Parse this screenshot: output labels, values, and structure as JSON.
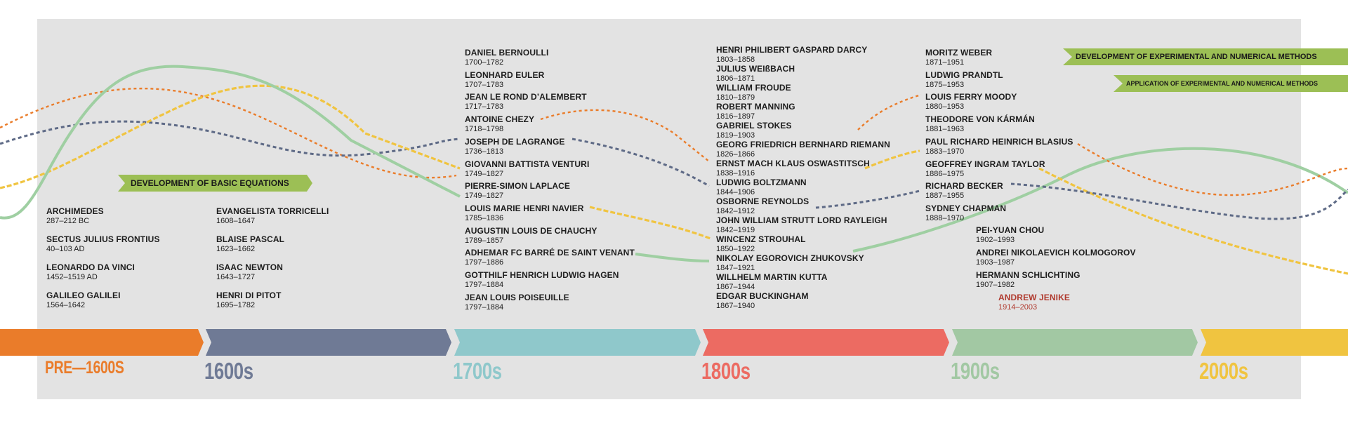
{
  "colors": {
    "orange": "#ea7c2a",
    "slate": "#6f7a95",
    "teal": "#8fc8cb",
    "red": "#ec6b62",
    "green": "#a2c8a3",
    "yellow": "#f0c440",
    "banner_green": "#9cbf55",
    "highlight_red": "#b03a2e"
  },
  "banners": {
    "basic": "DEVELOPMENT OF BASIC EQUATIONS",
    "experimental_dev": "DEVELOPMENT OF EXPERIMENTAL AND NUMERICAL METHODS",
    "experimental_app": "APPLICATION OF EXPERIMENTAL AND NUMERICAL METHODS"
  },
  "eras": [
    {
      "label": "PRE—1600S",
      "color": "#ea7c2a"
    },
    {
      "label": "1600s",
      "color": "#6f7a95"
    },
    {
      "label": "1700s",
      "color": "#8fc8cb"
    },
    {
      "label": "1800s",
      "color": "#ec6b62"
    },
    {
      "label": "1900s",
      "color": "#a2c8a3"
    },
    {
      "label": "2000s",
      "color": "#f0c440"
    }
  ],
  "columns": {
    "pre1600": [
      {
        "name": "ARCHIMEDES",
        "dates": "287–212 BC"
      },
      {
        "name": "SECTUS JULIUS FRONTIUS",
        "dates": "40–103 AD"
      },
      {
        "name": "LEONARDO DA VINCI",
        "dates": "1452–1519 AD"
      },
      {
        "name": "GALILEO GALILEI",
        "dates": "1564–1642"
      }
    ],
    "c1600": [
      {
        "name": "EVANGELISTA TORRICELLI",
        "dates": "1608–1647"
      },
      {
        "name": "BLAISE PASCAL",
        "dates": "1623–1662"
      },
      {
        "name": "ISAAC NEWTON",
        "dates": "1643–1727"
      },
      {
        "name": "HENRI DI PITOT",
        "dates": "1695–1782"
      }
    ],
    "c1700": [
      {
        "name": "DANIEL BERNOULLI",
        "dates": "1700–1782"
      },
      {
        "name": "LEONHARD EULER",
        "dates": "1707–1783"
      },
      {
        "name": "JEAN LE ROND D’ALEMBERT",
        "dates": "1717–1783"
      },
      {
        "name": "ANTOINE CHEZY",
        "dates": "1718–1798"
      },
      {
        "name": "JOSEPH DE LAGRANGE",
        "dates": "1736–1813"
      },
      {
        "name": "GIOVANNI BATTISTA VENTURI",
        "dates": "1749–1827"
      },
      {
        "name": "PIERRE-SIMON LAPLACE",
        "dates": "1749–1827"
      },
      {
        "name": "LOUIS MARIE HENRI NAVIER",
        "dates": "1785–1836"
      },
      {
        "name": "AUGUSTIN LOUIS DE CHAUCHY",
        "dates": "1789–1857"
      },
      {
        "name": "ADHEMAR FC BARRÉ DE SAINT VENANT",
        "dates": "1797–1886"
      },
      {
        "name": "GOTTHILF HENRICH LUDWIG HAGEN",
        "dates": "1797–1884"
      },
      {
        "name": "JEAN LOUIS POISEUILLE",
        "dates": "1797–1884"
      }
    ],
    "c1800": [
      {
        "name": "HENRI PHILIBERT GASPARD DARCY",
        "dates": "1803–1858"
      },
      {
        "name": "JULIUS WEIßBACH",
        "dates": "1806–1871"
      },
      {
        "name": "WILLIAM FROUDE",
        "dates": "1810–1879"
      },
      {
        "name": "ROBERT MANNING",
        "dates": "1816–1897"
      },
      {
        "name": "GABRIEL STOKES",
        "dates": "1819–1903"
      },
      {
        "name": "GEORG FRIEDRICH BERNHARD RIEMANN",
        "dates": "1826–1866"
      },
      {
        "name": "ERNST MACH KLAUS OSWASTITSCH",
        "dates": "1838–1916"
      },
      {
        "name": "LUDWIG BOLTZMANN",
        "dates": "1844–1906"
      },
      {
        "name": "OSBORNE REYNOLDS",
        "dates": "1842–1912"
      },
      {
        "name": "JOHN WILLIAM STRUTT LORD RAYLEIGH",
        "dates": "1842–1919"
      },
      {
        "name": "WINCENZ STROUHAL",
        "dates": "1850–1922"
      },
      {
        "name": "NIKOLAY EGOROVICH ZHUKOVSKY",
        "dates": "1847–1921"
      },
      {
        "name": "WILLHELM MARTIN KUTTA",
        "dates": "1867–1944"
      },
      {
        "name": "EDGAR BUCKINGHAM",
        "dates": "1867–1940"
      }
    ],
    "c1900a": [
      {
        "name": "MORITZ WEBER",
        "dates": "1871–1951"
      },
      {
        "name": "LUDWIG PRANDTL",
        "dates": "1875–1953"
      },
      {
        "name": "LOUIS FERRY MOODY",
        "dates": "1880–1953"
      },
      {
        "name": "THEODORE VON KÁRMÁN",
        "dates": "1881–1963"
      },
      {
        "name": "PAUL RICHARD HEINRICH BLASIUS",
        "dates": "1883–1970"
      },
      {
        "name": "GEOFFREY INGRAM TAYLOR",
        "dates": "1886–1975"
      },
      {
        "name": "RICHARD BECKER",
        "dates": "1887–1955"
      },
      {
        "name": "SYDNEY CHAPMAN",
        "dates": "1888–1970"
      }
    ],
    "c1900b": [
      {
        "name": "PEI-YUAN CHOU",
        "dates": "1902–1993"
      },
      {
        "name": "ANDREI NIKOLAEVICH KOLMOGOROV",
        "dates": "1903–1987"
      },
      {
        "name": "HERMANN SCHLICHTING",
        "dates": "1907–1982"
      }
    ],
    "highlight": {
      "name": "ANDREW JENIKE",
      "dates": "1914–2003"
    }
  }
}
